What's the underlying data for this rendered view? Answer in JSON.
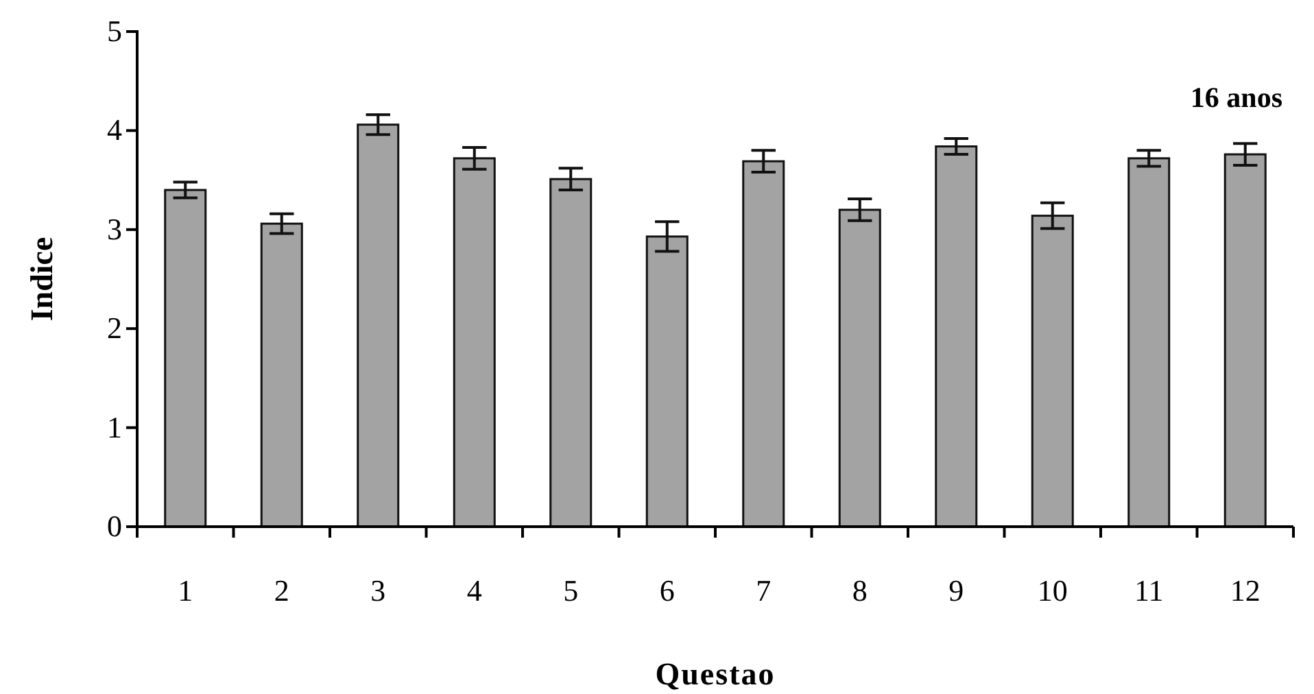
{
  "chart_data": {
    "type": "bar",
    "title": "16 anos",
    "xlabel": "Questao",
    "ylabel": "Indice",
    "categories": [
      "1",
      "2",
      "3",
      "4",
      "5",
      "6",
      "7",
      "8",
      "9",
      "10",
      "11",
      "12"
    ],
    "values": [
      3.4,
      3.06,
      4.06,
      3.72,
      3.51,
      2.93,
      3.69,
      3.2,
      3.84,
      3.14,
      3.72,
      3.76
    ],
    "errors": [
      0.08,
      0.1,
      0.1,
      0.11,
      0.11,
      0.15,
      0.11,
      0.11,
      0.08,
      0.13,
      0.08,
      0.11
    ],
    "color": "#a3a3a3",
    "ylim": [
      0,
      5
    ],
    "yticks": [
      0,
      1,
      2,
      3,
      4,
      5
    ],
    "grid": false
  }
}
